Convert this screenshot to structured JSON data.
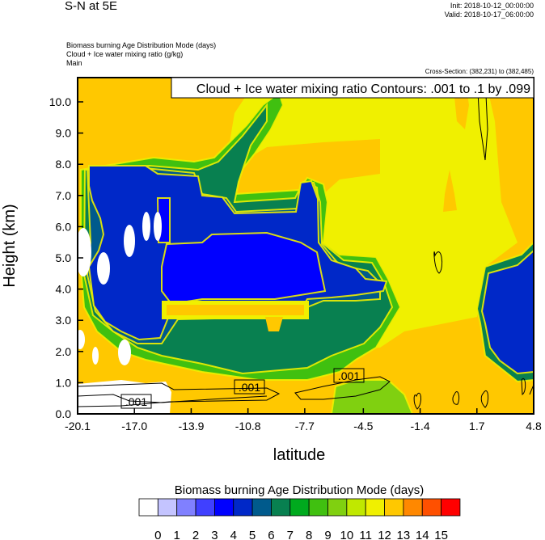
{
  "header": {
    "title": "S-N at 5E",
    "init": "Init: 2018-10-12_00:00:00",
    "valid": "Valid: 2018-10-17_06:00:00",
    "field_lines": [
      "Biomass burning Age Distribution Mode   (days)",
      "Cloud + Ice water mixing ratio   (g/kg)",
      "Main"
    ],
    "cross_section": "Cross-Section: (382,231) to (382,485)"
  },
  "chart_data": {
    "type": "heatmap",
    "subtype": "filled contour with line contour overlay",
    "title": "Cloud + Ice water mixing ratio Contours: .001 to .1 by .099",
    "xlabel": "latitude",
    "ylabel": "Height (km)",
    "xlim": [
      -20.1,
      4.8
    ],
    "ylim": [
      0,
      10.8
    ],
    "x_ticks": [
      "-20.1",
      "-17.0",
      "-13.9",
      "-10.8",
      "-7.7",
      "-4.5",
      "-1.4",
      "1.7",
      "4.8"
    ],
    "x_tick_values": [
      -20.1,
      -17.0,
      -13.9,
      -10.8,
      -7.7,
      -4.5,
      -1.4,
      1.7,
      4.8
    ],
    "y_ticks": [
      "0.0",
      "1.0",
      "2.0",
      "3.0",
      "4.0",
      "5.0",
      "6.0",
      "7.0",
      "8.0",
      "9.0",
      "10.0"
    ],
    "y_tick_values": [
      0,
      1,
      2,
      3,
      4,
      5,
      6,
      7,
      8,
      9,
      10
    ],
    "contour_line_labels": [
      ".001",
      ".001",
      ".001"
    ],
    "grid": false,
    "colorbar": {
      "title": "Biomass burning Age Distribution Mode  (days)",
      "position": "bottom",
      "levels": [
        "0",
        "1",
        "2",
        "3",
        "4",
        "5",
        "6",
        "7",
        "8",
        "9",
        "10",
        "11",
        "12",
        "13",
        "14",
        "15"
      ],
      "colors": [
        "#ffffff",
        "#c4c4ff",
        "#8080ff",
        "#4040ff",
        "#0000ff",
        "#0028c8",
        "#005a8c",
        "#088050",
        "#00aa1e",
        "#40c010",
        "#80d010",
        "#c0e800",
        "#f0f000",
        "#ffc800",
        "#ff8800",
        "#ff5000",
        "#ff0000"
      ]
    }
  }
}
